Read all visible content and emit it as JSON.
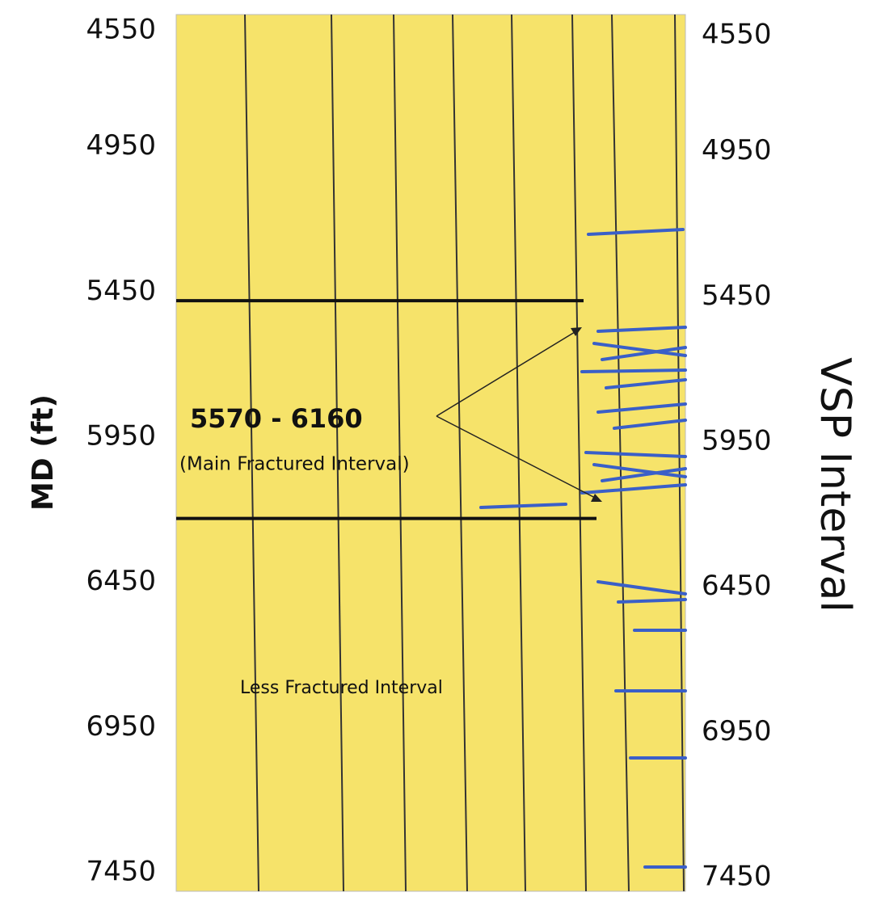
{
  "chart_data": {
    "type": "depth-log",
    "y_label": "MD (ft)",
    "ylim": [
      4550,
      7450
    ],
    "yticks": [
      4550,
      4950,
      5450,
      5950,
      6450,
      6950,
      7450
    ],
    "y2_label": "VSP Interval",
    "y2lim": [
      4550,
      7450
    ],
    "y2ticks": [
      4550,
      4950,
      5450,
      5950,
      6450,
      6950,
      7450
    ],
    "annotations": [
      "5570 - 6160",
      "(Main Fractured Interval)",
      "Less Fractured Interval"
    ],
    "interval_lines": [
      5480,
      6230
    ],
    "interval_color": "#111111",
    "panel_color": "#f6e36a",
    "fracture_color": "#3a5fc8"
  }
}
